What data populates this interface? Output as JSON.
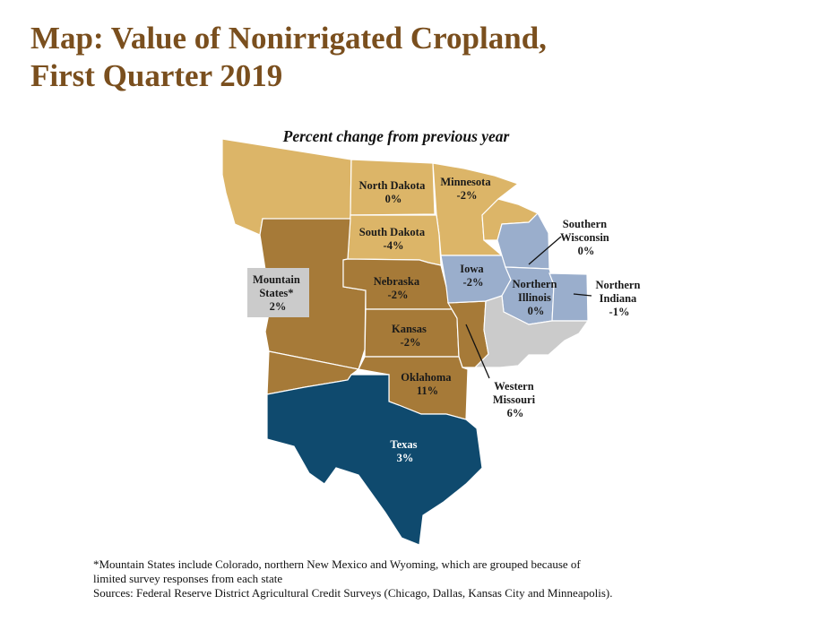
{
  "title": {
    "line1": "Map: Value of Nonirrigated Cropland,",
    "line2": "First Quarter 2019"
  },
  "subtitle": "Percent change from previous year",
  "colors": {
    "gold": "#dcb568",
    "brown": "#a67a38",
    "blue_gray": "#9aaecc",
    "gray": "#cbcbcb",
    "navy": "#0f4a6e",
    "title": "#7a4f1e"
  },
  "regions": [
    {
      "id": "north-dakota",
      "name": "North Dakota",
      "value": "0%"
    },
    {
      "id": "minnesota",
      "name": "Minnesota",
      "value": "-2%"
    },
    {
      "id": "south-dakota",
      "name": "South Dakota",
      "value": "-4%"
    },
    {
      "id": "mountain-states",
      "name_line1": "Mountain",
      "name_line2": "States*",
      "value": "2%"
    },
    {
      "id": "nebraska",
      "name": "Nebraska",
      "value": "-2%"
    },
    {
      "id": "kansas",
      "name": "Kansas",
      "value": "-2%"
    },
    {
      "id": "oklahoma",
      "name": "Oklahoma",
      "value": "11%"
    },
    {
      "id": "texas",
      "name": "Texas",
      "value": "3%"
    },
    {
      "id": "iowa",
      "name": "Iowa",
      "value": "-2%"
    },
    {
      "id": "southern-wisconsin",
      "name_line1": "Southern",
      "name_line2": "Wisconsin",
      "value": "0%"
    },
    {
      "id": "northern-illinois",
      "name_line1": "Northern",
      "name_line2": "Illinois",
      "value": "0%"
    },
    {
      "id": "northern-indiana",
      "name_line1": "Northern",
      "name_line2": "Indiana",
      "value": "-1%"
    },
    {
      "id": "western-missouri",
      "name_line1": "Western",
      "name_line2": "Missouri",
      "value": "6%"
    }
  ],
  "notes": {
    "footnote_line1": "*Mountain States include Colorado, northern New Mexico and Wyoming, which are grouped because of",
    "footnote_line2": "limited survey responses from each state",
    "sources": "Sources: Federal Reserve District Agricultural Credit Surveys (Chicago, Dallas, Kansas City and Minneapolis)."
  }
}
